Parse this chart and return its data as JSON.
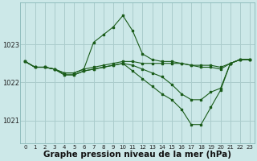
{
  "title": "Graphe pression niveau de la mer (hPa)",
  "bg_color": "#cce8e8",
  "grid_color": "#aacccc",
  "line_color": "#1a5c1a",
  "ylim": [
    1020.4,
    1024.1
  ],
  "yticks": [
    1021,
    1022,
    1023
  ],
  "title_fontsize": 7.5,
  "xlim": [
    -0.5,
    23.5
  ],
  "xticks": [
    0,
    1,
    2,
    3,
    4,
    5,
    6,
    7,
    8,
    9,
    10,
    11,
    12,
    13,
    14,
    15,
    16,
    17,
    18,
    19,
    20,
    21,
    22,
    23
  ],
  "series": [
    {
      "x": [
        0,
        1,
        2,
        3,
        4,
        5,
        6,
        7,
        8,
        9,
        10,
        11,
        12,
        13,
        14,
        15,
        16,
        17,
        18,
        19,
        20,
        21,
        22,
        23
      ],
      "y": [
        1022.55,
        1022.4,
        1022.4,
        1022.35,
        1022.25,
        1022.25,
        1022.35,
        1023.05,
        1023.25,
        1023.45,
        1023.75,
        1023.35,
        1022.75,
        1022.6,
        1022.55,
        1022.55,
        1022.5,
        1022.45,
        1022.4,
        1022.4,
        1022.35,
        1022.5,
        1022.6,
        1022.6
      ]
    },
    {
      "x": [
        0,
        1,
        2,
        3,
        4,
        5,
        6,
        7,
        8,
        9,
        10,
        11,
        12,
        13,
        14,
        15,
        16,
        17,
        18,
        19,
        20,
        21,
        22,
        23
      ],
      "y": [
        1022.55,
        1022.4,
        1022.4,
        1022.35,
        1022.25,
        1022.25,
        1022.35,
        1022.4,
        1022.45,
        1022.5,
        1022.55,
        1022.55,
        1022.5,
        1022.5,
        1022.5,
        1022.5,
        1022.5,
        1022.45,
        1022.45,
        1022.45,
        1022.4,
        1022.5,
        1022.6,
        1022.6
      ]
    },
    {
      "x": [
        0,
        1,
        2,
        3,
        4,
        5,
        6,
        7,
        8,
        9,
        10,
        11,
        12,
        13,
        14,
        15,
        16,
        17,
        18,
        19,
        20,
        21,
        22,
        23
      ],
      "y": [
        1022.55,
        1022.4,
        1022.4,
        1022.35,
        1022.2,
        1022.2,
        1022.3,
        1022.35,
        1022.4,
        1022.45,
        1022.5,
        1022.45,
        1022.35,
        1022.25,
        1022.15,
        1021.95,
        1021.7,
        1021.55,
        1021.55,
        1021.75,
        1021.85,
        1022.5,
        1022.6,
        1022.6
      ]
    },
    {
      "x": [
        0,
        1,
        2,
        3,
        4,
        5,
        6,
        7,
        8,
        9,
        10,
        11,
        12,
        13,
        14,
        15,
        16,
        17,
        18,
        19,
        20,
        21,
        22,
        23
      ],
      "y": [
        1022.55,
        1022.4,
        1022.4,
        1022.35,
        1022.2,
        1022.2,
        1022.3,
        1022.35,
        1022.4,
        1022.45,
        1022.5,
        1022.3,
        1022.1,
        1021.9,
        1021.7,
        1021.55,
        1021.3,
        1020.9,
        1020.9,
        1021.35,
        1021.8,
        1022.5,
        1022.6,
        1022.6
      ]
    }
  ]
}
